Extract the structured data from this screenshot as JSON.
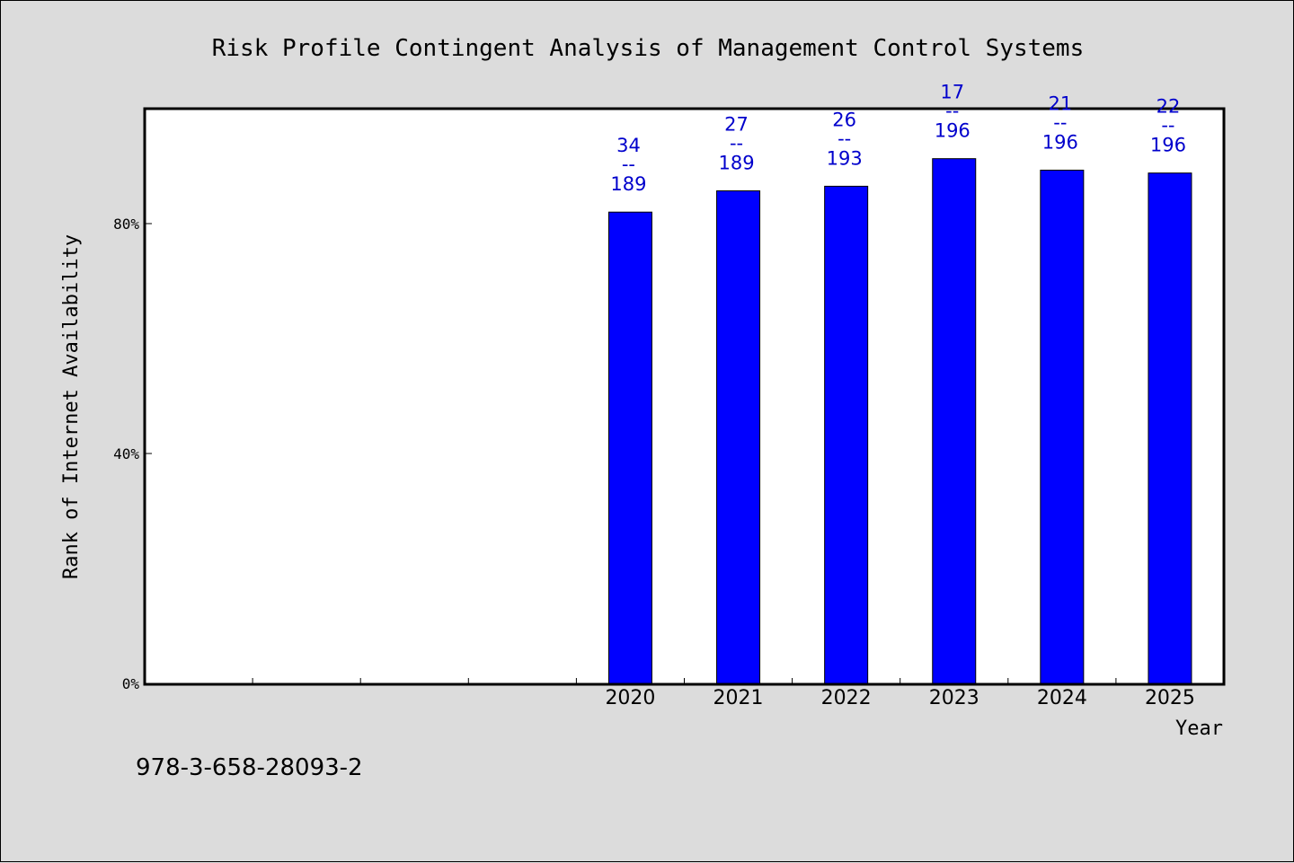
{
  "chart_data": {
    "type": "bar",
    "title": "Risk Profile Contingent Analysis of Management Control Systems",
    "xlabel": "Year",
    "ylabel": "Rank of Internet Availability",
    "categories": [
      "",
      "",
      "",
      "",
      "2020",
      "2021",
      "2022",
      "2023",
      "2024",
      "2025"
    ],
    "values": [
      null,
      null,
      null,
      null,
      82.0,
      85.7,
      86.5,
      91.3,
      89.3,
      88.8
    ],
    "data_labels": [
      {
        "num": "34",
        "den": "189"
      },
      {
        "num": "27",
        "den": "189"
      },
      {
        "num": "26",
        "den": "193"
      },
      {
        "num": "17",
        "den": "196"
      },
      {
        "num": "21",
        "den": "196"
      },
      {
        "num": "22",
        "den": "196"
      }
    ],
    "fraction_bar": "--",
    "yticks": [
      "0%",
      "40%",
      "80%"
    ],
    "ytick_values": [
      0,
      40,
      80
    ],
    "ylim": [
      0,
      100
    ],
    "bar_color": "#0000ff",
    "label_color": "#0000cc",
    "grid": false,
    "legend": "none"
  },
  "footer": {
    "isbn": "978-3-658-28093-2"
  }
}
